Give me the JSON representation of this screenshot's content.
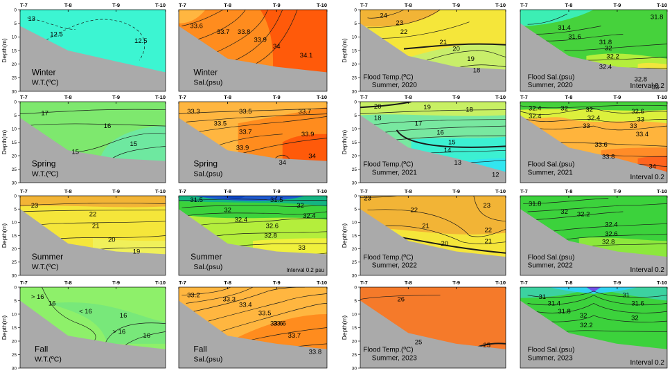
{
  "colors": {
    "seafloor": "#aaaaaa",
    "winter_wt": "#3cf5d2",
    "spring_wt": "#7ee86e",
    "fall_wt": "#8ef06a",
    "temp_warm": "#f2b436",
    "temp_mid": "#f5e63a",
    "sal_deep_orange": "#ff5a0a",
    "sal_orange": "#ff8c1e",
    "sal_light_orange": "#ffb640",
    "sal_green": "#3cd23c",
    "sal_blue": "#0a46c8"
  },
  "chart_data": [
    {
      "id": "winter_wt",
      "type": "heatmap",
      "variable": "W.T.(ºC)",
      "season": "Winter",
      "stations": [
        "T-7",
        "T-8",
        "T-9",
        "T-10"
      ],
      "ylabel": "Depth(m)",
      "yticks": [
        0,
        5,
        10,
        15,
        20,
        25,
        30
      ],
      "ylim": [
        30,
        0
      ],
      "bottom_depth": [
        6,
        15,
        19,
        23
      ],
      "contours": [
        {
          "value": "13"
        },
        {
          "value": "12.5"
        },
        {
          "value": "12.5"
        }
      ],
      "labels": [
        "Winter",
        "W.T.(ºC)"
      ]
    },
    {
      "id": "winter_sal",
      "type": "heatmap",
      "variable": "Sal.(psu)",
      "season": "Winter",
      "stations": [
        "T-7",
        "T-8",
        "T-9",
        "T-10"
      ],
      "ylabel": "",
      "yticks": [],
      "ylim": [
        30,
        0
      ],
      "bottom_depth": [
        6,
        18,
        21,
        23
      ],
      "contours": [
        {
          "value": "33.6"
        },
        {
          "value": "33.7"
        },
        {
          "value": "33.8"
        },
        {
          "value": "33.9"
        },
        {
          "value": "34"
        },
        {
          "value": "34.1"
        }
      ],
      "labels": [
        "Winter",
        "Sal.(psu)"
      ]
    },
    {
      "id": "flood_temp_2020",
      "type": "heatmap",
      "variable": "Flood Temp.(ºC)",
      "season": "Summer, 2020",
      "stations": [
        "T-7",
        "T-8",
        "T-9",
        "T-10"
      ],
      "ylabel": "Depth(m)",
      "yticks": [
        0,
        5,
        10,
        15,
        20,
        25,
        30
      ],
      "ylim": [
        30,
        0
      ],
      "bottom_depth": [
        5,
        17,
        21,
        22
      ],
      "contours": [
        {
          "value": "24"
        },
        {
          "value": "23"
        },
        {
          "value": "22"
        },
        {
          "value": "21"
        },
        {
          "value": "20"
        },
        {
          "value": "19"
        },
        {
          "value": "18"
        }
      ],
      "labels": [
        "Flood Temp.(ºC)",
        "Summer, 2020"
      ]
    },
    {
      "id": "flood_sal_2020",
      "type": "heatmap",
      "variable": "Flood Sal.(psu)",
      "season": "Summer, 2020",
      "stations": [
        "T-7",
        "T-8",
        "T-9",
        "T-10"
      ],
      "ylabel": "",
      "yticks": [],
      "ylim": [
        30,
        0
      ],
      "bottom_depth": [
        5,
        17,
        21,
        22
      ],
      "contours": [
        {
          "value": "31.4"
        },
        {
          "value": "31.6"
        },
        {
          "value": "31.8"
        },
        {
          "value": "31.8"
        },
        {
          "value": "32"
        },
        {
          "value": "32.2"
        },
        {
          "value": "32.4"
        },
        {
          "value": "32.8"
        },
        {
          "value": "33"
        }
      ],
      "labels": [
        "Flood Sal.(psu)",
        "Summer, 2020"
      ],
      "note": "Interval 0.2"
    },
    {
      "id": "spring_wt",
      "type": "heatmap",
      "variable": "W.T.(ºC)",
      "season": "Spring",
      "stations": [
        "T-7",
        "T-8",
        "T-9",
        "T-10"
      ],
      "ylabel": "Depth(m)",
      "yticks": [
        0,
        5,
        10,
        15,
        20,
        25,
        30
      ],
      "ylim": [
        30,
        0
      ],
      "bottom_depth": [
        6,
        18,
        21,
        22
      ],
      "contours": [
        {
          "value": "17"
        },
        {
          "value": "16"
        },
        {
          "value": "15"
        },
        {
          "value": "15"
        }
      ],
      "labels": [
        "Spring",
        "W.T.(ºC)"
      ]
    },
    {
      "id": "spring_sal",
      "type": "heatmap",
      "variable": "Sal.(psu)",
      "season": "Spring",
      "stations": [
        "T-7",
        "T-8",
        "T-9",
        "T-10"
      ],
      "ylabel": "",
      "yticks": [],
      "ylim": [
        30,
        0
      ],
      "bottom_depth": [
        6,
        18,
        21,
        22
      ],
      "contours": [
        {
          "value": "33.3"
        },
        {
          "value": "33.5"
        },
        {
          "value": "33.7"
        },
        {
          "value": "33.5"
        },
        {
          "value": "33.7"
        },
        {
          "value": "33.9"
        },
        {
          "value": "33.9"
        },
        {
          "value": "34"
        },
        {
          "value": "34"
        }
      ],
      "labels": [
        "Spring",
        "Sal.(psu)"
      ]
    },
    {
      "id": "flood_temp_2021",
      "type": "heatmap",
      "variable": "Flood Temp.(ºC)",
      "season": "Summer, 2021",
      "stations": [
        "T-7",
        "T-8",
        "T-9",
        "T-10"
      ],
      "ylabel": "Depth(m)",
      "yticks": [
        0,
        5,
        10,
        15,
        20,
        25,
        30
      ],
      "ylim": [
        30,
        0
      ],
      "bottom_depth": [
        5,
        17,
        21,
        26
      ],
      "contours": [
        {
          "value": "20"
        },
        {
          "value": "19"
        },
        {
          "value": "18"
        },
        {
          "value": "18"
        },
        {
          "value": "17"
        },
        {
          "value": "16"
        },
        {
          "value": "15"
        },
        {
          "value": "14"
        },
        {
          "value": "13"
        },
        {
          "value": "12"
        }
      ],
      "labels": [
        "Flood Temp.(ºC)",
        "Summer, 2021"
      ]
    },
    {
      "id": "flood_sal_2021",
      "type": "heatmap",
      "variable": "Flood Sal.(psu)",
      "season": "Summer, 2021",
      "stations": [
        "T-7",
        "T-8",
        "T-9",
        "T-10"
      ],
      "ylabel": "",
      "yticks": [],
      "ylim": [
        30,
        0
      ],
      "bottom_depth": [
        5,
        17,
        21,
        26
      ],
      "contours": [
        {
          "value": "32.4"
        },
        {
          "value": "32"
        },
        {
          "value": "32.4"
        },
        {
          "value": "32"
        },
        {
          "value": "32.4"
        },
        {
          "value": "32.6"
        },
        {
          "value": "33"
        },
        {
          "value": "33"
        },
        {
          "value": "33"
        },
        {
          "value": "33.4"
        },
        {
          "value": "33.6"
        },
        {
          "value": "33.8"
        },
        {
          "value": "34"
        }
      ],
      "labels": [
        "Flood Sal.(psu)",
        "Summer, 2021"
      ],
      "note": "Interval 0.2"
    },
    {
      "id": "summer_wt",
      "type": "heatmap",
      "variable": "W.T.(ºC)",
      "season": "Summer",
      "stations": [
        "T-7",
        "T-8",
        "T-9",
        "T-10"
      ],
      "ylabel": "Depth(m)",
      "yticks": [
        0,
        5,
        10,
        15,
        20,
        25,
        30
      ],
      "ylim": [
        30,
        0
      ],
      "bottom_depth": [
        5,
        18,
        21,
        22
      ],
      "contours": [
        {
          "value": "23"
        },
        {
          "value": "22"
        },
        {
          "value": "21"
        },
        {
          "value": "20"
        },
        {
          "value": "19"
        }
      ],
      "labels": [
        "Summer",
        "W.T.(ºC)"
      ]
    },
    {
      "id": "summer_sal",
      "type": "heatmap",
      "variable": "Sal.(psu)",
      "season": "Summer",
      "stations": [
        "T-7",
        "T-8",
        "T-9",
        "T-10"
      ],
      "ylabel": "",
      "yticks": [],
      "ylim": [
        30,
        0
      ],
      "bottom_depth": [
        5,
        18,
        21,
        22
      ],
      "contours": [
        {
          "value": "31.5"
        },
        {
          "value": "31.5"
        },
        {
          "value": "32"
        },
        {
          "value": "32"
        },
        {
          "value": "32.4"
        },
        {
          "value": "32.4"
        },
        {
          "value": "32.6"
        },
        {
          "value": "32.8"
        },
        {
          "value": "33"
        }
      ],
      "labels": [
        "Summer",
        "Sal.(psu)"
      ],
      "note": "Interval 0.2 psu"
    },
    {
      "id": "flood_temp_2022",
      "type": "heatmap",
      "variable": "Flood Temp.(ºC)",
      "season": "Summer, 2022",
      "stations": [
        "T-7",
        "T-8",
        "T-9",
        "T-10"
      ],
      "ylabel": "Depth(m)",
      "yticks": [
        0,
        5,
        10,
        15,
        20,
        25,
        30
      ],
      "ylim": [
        30,
        0
      ],
      "bottom_depth": [
        5,
        17,
        21,
        23
      ],
      "contours": [
        {
          "value": "23"
        },
        {
          "value": "23"
        },
        {
          "value": "22"
        },
        {
          "value": "21"
        },
        {
          "value": "22"
        },
        {
          "value": "21"
        },
        {
          "value": "20"
        }
      ],
      "labels": [
        "Flood Temp.(ºC)",
        "Summer, 2022"
      ]
    },
    {
      "id": "flood_sal_2022",
      "type": "heatmap",
      "variable": "Flood Sal.(psu)",
      "season": "Summer, 2022",
      "stations": [
        "T-7",
        "T-8",
        "T-9",
        "T-10"
      ],
      "ylabel": "",
      "yticks": [],
      "ylim": [
        30,
        0
      ],
      "bottom_depth": [
        5,
        17,
        21,
        23
      ],
      "contours": [
        {
          "value": "31.8"
        },
        {
          "value": "32"
        },
        {
          "value": "32.2"
        },
        {
          "value": "32.4"
        },
        {
          "value": "32.6"
        },
        {
          "value": "32.8"
        }
      ],
      "labels": [
        "Flood Sal.(psu)",
        "Summer, 2022"
      ],
      "note": "Interval 0.2"
    },
    {
      "id": "fall_wt",
      "type": "heatmap",
      "variable": "W.T.(ºC)",
      "season": "Fall",
      "stations": [
        "T-7",
        "T-8",
        "T-9",
        "T-10"
      ],
      "ylabel": "Depth(m)",
      "yticks": [
        0,
        5,
        10,
        15,
        20,
        25,
        30
      ],
      "ylim": [
        30,
        0
      ],
      "bottom_depth": [
        5,
        18,
        21,
        23
      ],
      "contours": [
        {
          "value": "> 16"
        },
        {
          "value": "16"
        },
        {
          "value": "< 16"
        },
        {
          "value": "16"
        },
        {
          "value": "> 16"
        },
        {
          "value": "16"
        }
      ],
      "labels": [
        "Fall",
        "W.T.(ºC)"
      ]
    },
    {
      "id": "fall_sal",
      "type": "heatmap",
      "variable": "Sal.(psu)",
      "season": "Fall",
      "stations": [
        "T-7",
        "T-8",
        "T-9",
        "T-10"
      ],
      "ylabel": "",
      "yticks": [],
      "ylim": [
        30,
        0
      ],
      "bottom_depth": [
        5,
        18,
        21,
        23
      ],
      "contours": [
        {
          "value": "33.2"
        },
        {
          "value": "33.3"
        },
        {
          "value": "33.4"
        },
        {
          "value": "33.5"
        },
        {
          "value": "33.6"
        },
        {
          "value": "33.6"
        },
        {
          "value": "33.7"
        },
        {
          "value": "33.8"
        }
      ],
      "labels": [
        "Fall",
        "Sal.(psu)"
      ]
    },
    {
      "id": "flood_temp_2023",
      "type": "heatmap",
      "variable": "Flood Temp.(ºC)",
      "season": "Summer, 2023",
      "stations": [
        "T-7",
        "T-8",
        "T-9",
        "T-10"
      ],
      "ylabel": "Depth(m)",
      "yticks": [
        0,
        5,
        10,
        15,
        20,
        25,
        30
      ],
      "ylim": [
        30,
        0
      ],
      "bottom_depth": [
        5,
        17,
        21,
        23
      ],
      "contours": [
        {
          "value": "26"
        },
        {
          "value": "25"
        },
        {
          "value": "25"
        }
      ],
      "labels": [
        "Flood Temp.(ºC)",
        "Summer, 2023"
      ]
    },
    {
      "id": "flood_sal_2023",
      "type": "heatmap",
      "variable": "Flood Sal.(psu)",
      "season": "Summer, 2023",
      "stations": [
        "T-7",
        "T-8",
        "T-9",
        "T-10"
      ],
      "ylabel": "",
      "yticks": [],
      "ylim": [
        30,
        0
      ],
      "bottom_depth": [
        5,
        17,
        21,
        23
      ],
      "contours": [
        {
          "value": "31"
        },
        {
          "value": "31"
        },
        {
          "value": "31.4"
        },
        {
          "value": "31.6"
        },
        {
          "value": "31.8"
        },
        {
          "value": "32"
        },
        {
          "value": "32"
        },
        {
          "value": "32.2"
        }
      ],
      "labels": [
        "Flood Sal.(psu)",
        "Summer, 2023"
      ],
      "note": "Interval 0.2"
    }
  ]
}
